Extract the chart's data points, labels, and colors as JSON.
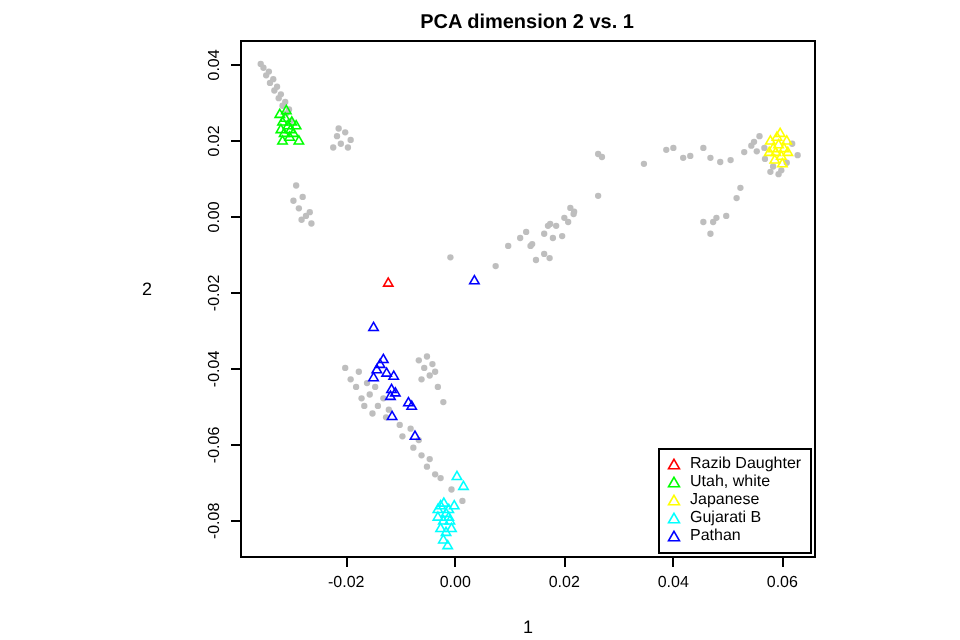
{
  "chart_data": {
    "type": "scatter",
    "title": "PCA dimension 2 vs. 1",
    "xlabel": "1",
    "ylabel": "2",
    "xlim": [
      -0.0393,
      0.066
    ],
    "ylim": [
      -0.0895,
      0.0463
    ],
    "xticks": [
      {
        "value": -0.02,
        "label": "-0.02"
      },
      {
        "value": 0,
        "label": "0.00"
      },
      {
        "value": 0.02,
        "label": "0.02"
      },
      {
        "value": 0.04,
        "label": "0.04"
      },
      {
        "value": 0.06,
        "label": "0.06"
      }
    ],
    "yticks": [
      {
        "value": -0.08,
        "label": "-0.08"
      },
      {
        "value": -0.06,
        "label": "-0.06"
      },
      {
        "value": -0.04,
        "label": "-0.04"
      },
      {
        "value": -0.02,
        "label": "-0.02"
      },
      {
        "value": 0,
        "label": "0.00"
      },
      {
        "value": 0.02,
        "label": "0.02"
      },
      {
        "value": 0.04,
        "label": "0.04"
      }
    ],
    "legend": "bottom right",
    "series": [
      {
        "color": "#bebebe",
        "marker": "circle",
        "x": [
          -0.0355,
          -0.035,
          -0.0345,
          -0.034,
          -0.0338,
          -0.0332,
          -0.033,
          -0.0325,
          -0.0322,
          -0.0318,
          -0.0315,
          -0.031,
          -0.0308,
          -0.0303,
          -0.03,
          -0.0222,
          -0.0215,
          -0.0208,
          -0.02,
          -0.0195,
          -0.019,
          -0.0212,
          -0.029,
          -0.0295,
          -0.0285,
          -0.0278,
          -0.0272,
          -0.0265,
          -0.0262,
          -0.028,
          -0.0007,
          0.0076,
          0.0099,
          0.0121,
          0.0132,
          0.014,
          0.0165,
          0.015,
          0.0175,
          0.0181,
          0.0187,
          0.0198,
          0.0209,
          0.022,
          0.0202,
          0.0176,
          0.0165,
          0.0143,
          0.0172,
          0.0264,
          0.0271,
          0.0348,
          0.0389,
          0.0402,
          0.042,
          0.0433,
          0.0457,
          0.047,
          0.0488,
          0.0507,
          0.0532,
          0.055,
          0.0569,
          0.058,
          0.0525,
          0.0518,
          0.0499,
          0.0481,
          0.0475,
          0.0457,
          0.047,
          0.0264,
          0.0213,
          0.0219,
          0.056,
          0.057,
          0.0585,
          0.06,
          0.061,
          0.062,
          0.0555,
          0.0545,
          0.063,
          0.0595,
          -0.02,
          -0.019,
          -0.018,
          -0.0175,
          -0.017,
          -0.016,
          -0.0165,
          -0.0155,
          -0.015,
          -0.0145,
          -0.014,
          -0.013,
          -0.0125,
          -0.012,
          -0.01,
          -0.0095,
          -0.008,
          -0.0075,
          -0.0065,
          -0.006,
          -0.005,
          -0.0045,
          -0.0035,
          -0.0025,
          -0.0005,
          0.0015,
          -0.0065,
          -0.0055,
          -0.005,
          -0.0045,
          -0.004,
          -0.0035,
          -0.003,
          -0.006,
          -0.002
        ],
        "values": [
          0.04,
          0.039,
          0.037,
          0.038,
          0.035,
          0.036,
          0.033,
          0.034,
          0.031,
          0.032,
          0.029,
          0.03,
          0.027,
          0.028,
          0.025,
          0.018,
          0.021,
          0.019,
          0.022,
          0.018,
          0.02,
          0.023,
          0.008,
          0.004,
          0.002,
          0.005,
          0,
          0.001,
          -0.002,
          -0.001,
          -0.0109,
          -0.0132,
          -0.0079,
          -0.0058,
          -0.0042,
          -0.0079,
          -0.01,
          -0.0116,
          -0.0111,
          -0.0058,
          -0.0026,
          -0.0053,
          -0.0016,
          0.0011,
          -0.0005,
          -0.0021,
          -0.0047,
          -0.0074,
          -0.0026,
          0.0163,
          0.0155,
          0.0137,
          0.0174,
          0.0179,
          0.0153,
          0.0158,
          0.0179,
          0.0153,
          0.0142,
          0.0147,
          0.0168,
          0.0195,
          0.0179,
          0.0116,
          0.0074,
          0.0047,
          0,
          -0.0005,
          -0.0016,
          -0.0016,
          -0.0047,
          0.0053,
          0.0021,
          0.0005,
          0.021,
          0.015,
          0.013,
          0.012,
          0.014,
          0.019,
          0.017,
          0.0185,
          0.016,
          0.011,
          -0.04,
          -0.043,
          -0.045,
          -0.041,
          -0.048,
          -0.044,
          -0.05,
          -0.047,
          -0.052,
          -0.045,
          -0.05,
          -0.048,
          -0.053,
          -0.051,
          -0.055,
          -0.058,
          -0.056,
          -0.061,
          -0.059,
          -0.063,
          -0.066,
          -0.064,
          -0.068,
          -0.069,
          -0.072,
          -0.075,
          -0.038,
          -0.04,
          -0.037,
          -0.042,
          -0.039,
          -0.041,
          -0.045,
          -0.043,
          -0.049
        ]
      },
      {
        "name": "Razib Daughter",
        "color": "#ff0000",
        "marker": "triangle",
        "x": [
          -0.0121
        ],
        "values": [
          -0.0174
        ]
      },
      {
        "name": "Utah, white",
        "color": "#00ff00",
        "marker": "triangle",
        "x": [
          -0.032,
          -0.0315,
          -0.031,
          -0.0305,
          -0.03,
          -0.0318,
          -0.0312,
          -0.0302,
          -0.0295,
          -0.0308,
          -0.0298,
          -0.029,
          -0.0285,
          -0.0315
        ],
        "values": [
          0.027,
          0.025,
          0.026,
          0.024,
          0.023,
          0.023,
          0.022,
          0.021,
          0.022,
          0.028,
          0.025,
          0.024,
          0.02,
          0.02
        ]
      },
      {
        "name": "Japanese",
        "color": "#ffff00",
        "marker": "triangle",
        "x": [
          0.058,
          0.0585,
          0.059,
          0.0595,
          0.06,
          0.0592,
          0.0605,
          0.0588,
          0.0598,
          0.061,
          0.0578,
          0.0602,
          0.0612
        ],
        "values": [
          0.02,
          0.018,
          0.017,
          0.019,
          0.016,
          0.021,
          0.018,
          0.015,
          0.022,
          0.02,
          0.017,
          0.014,
          0.017
        ]
      },
      {
        "name": "Gujarati B",
        "color": "#00ffff",
        "marker": "triangle",
        "x": [
          0.0005,
          0.0017,
          -0.0019,
          -0.0025,
          -0.0015,
          -0.001,
          -0.003,
          -0.002,
          -0.0008,
          -0.0025,
          -0.0015,
          -0.0005,
          -0.002,
          -0.001,
          -0.003,
          0,
          -0.0012
        ],
        "values": [
          -0.0683,
          -0.0709,
          -0.0753,
          -0.076,
          -0.078,
          -0.077,
          -0.079,
          -0.08,
          -0.08,
          -0.082,
          -0.083,
          -0.082,
          -0.085,
          -0.079,
          -0.077,
          -0.076,
          -0.0865
        ]
      },
      {
        "name": "Pathan",
        "color": "#0000ff",
        "marker": "triangle",
        "x": [
          0.0037,
          -0.0148,
          -0.013,
          -0.0136,
          -0.0142,
          -0.0124,
          -0.0148,
          -0.0111,
          -0.0115,
          -0.0117,
          -0.0108,
          -0.0084,
          -0.0078,
          -0.0114,
          -0.0072
        ],
        "values": [
          -0.0168,
          -0.0291,
          -0.0375,
          -0.0388,
          -0.0402,
          -0.0411,
          -0.0423,
          -0.0419,
          -0.0454,
          -0.0472,
          -0.0463,
          -0.0489,
          -0.0498,
          -0.0525,
          -0.0577
        ]
      }
    ]
  }
}
